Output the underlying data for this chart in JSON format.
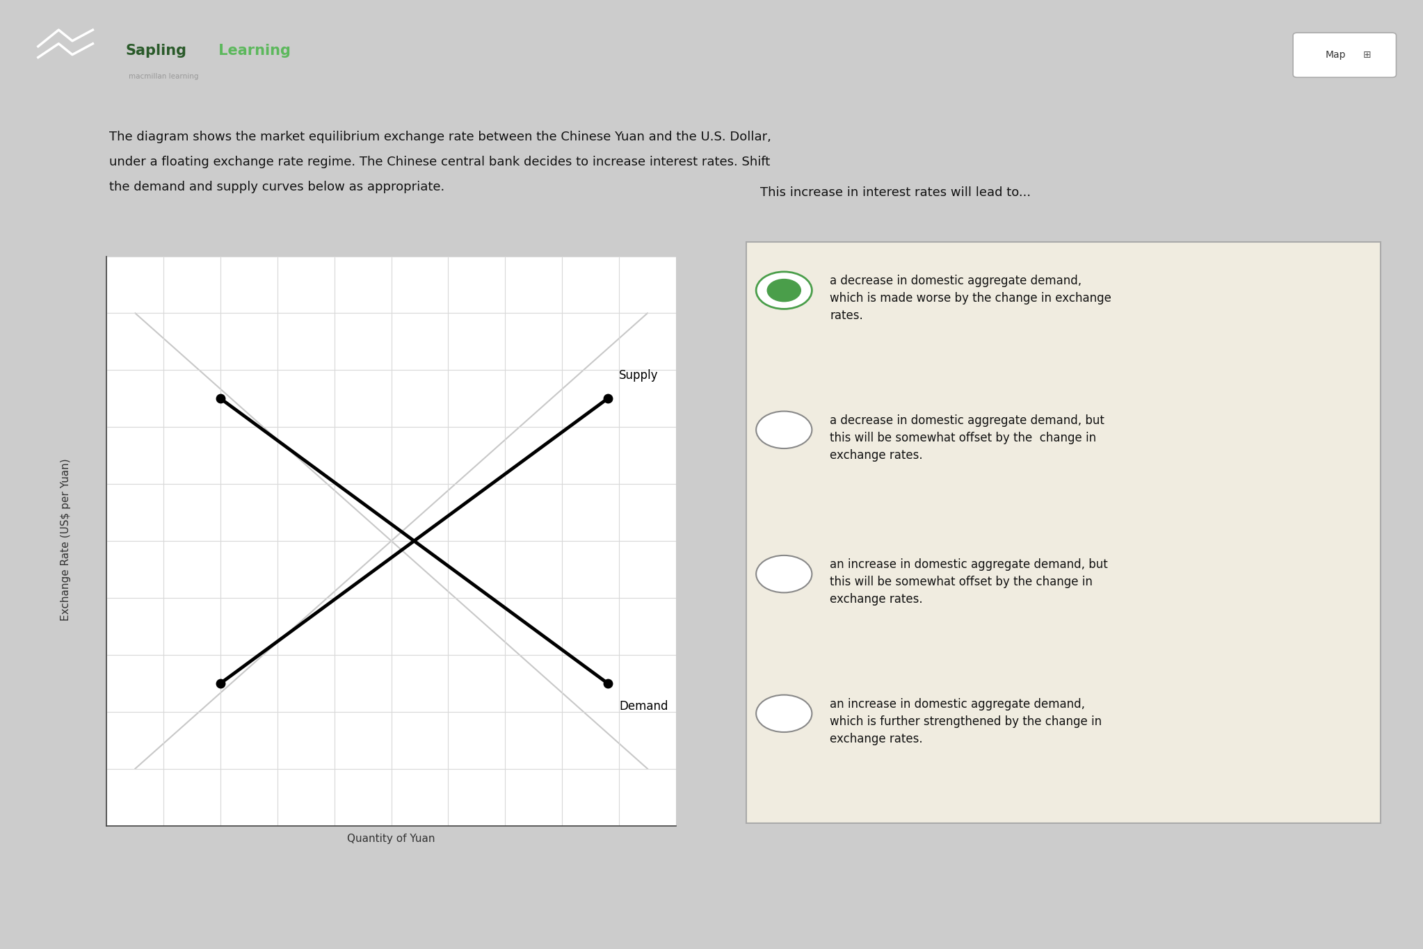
{
  "bg_color": "#cccccc",
  "page_bg": "#ffffff",
  "header_logo_color": "#4a9e4a",
  "header_text_sapling": "Sapling",
  "header_text_learning": " Learning",
  "header_subtext": "macmillan learning",
  "map_button_text": "Map",
  "description_line1": "The diagram shows the market equilibrium exchange rate between the Chinese Yuan and the U.S. Dollar,",
  "description_line2": "under a floating exchange rate regime. The Chinese central bank decides to increase interest rates. Shift",
  "description_line3": "the demand and supply curves below as appropriate.",
  "xlabel": "Quantity of Yuan",
  "ylabel": "Exchange Rate (US$ per Yuan)",
  "supply_label": "Supply",
  "demand_label": "Demand",
  "supply_color": "#000000",
  "demand_color": "#000000",
  "ghost_color": "#c8c8c8",
  "grid_color": "#d8d8d8",
  "question_header": "This increase in interest rates will lead to...",
  "options": [
    "a decrease in domestic aggregate demand,\nwhich is made worse by the change in exchange\nrates.",
    "a decrease in domestic aggregate demand, but\nthis will be somewhat offset by the  change in\nexchange rates.",
    "an increase in domestic aggregate demand, but\nthis will be somewhat offset by the change in\nexchange rates.",
    "an increase in domestic aggregate demand,\nwhich is further strengthened by the change in\nexchange rates."
  ],
  "selected_option": 0,
  "option_box_bg": "#f0ece0",
  "option_box_border": "#aaaaaa",
  "radio_selected_fill": "#4a9e4a",
  "radio_unselected_fill": "#ffffff",
  "radio_border_color": "#888888",
  "font_size_description": 13,
  "font_size_question": 13,
  "font_size_options": 12,
  "font_size_axis_label": 11,
  "font_size_header_sapling": 15,
  "font_size_header_learning": 15
}
